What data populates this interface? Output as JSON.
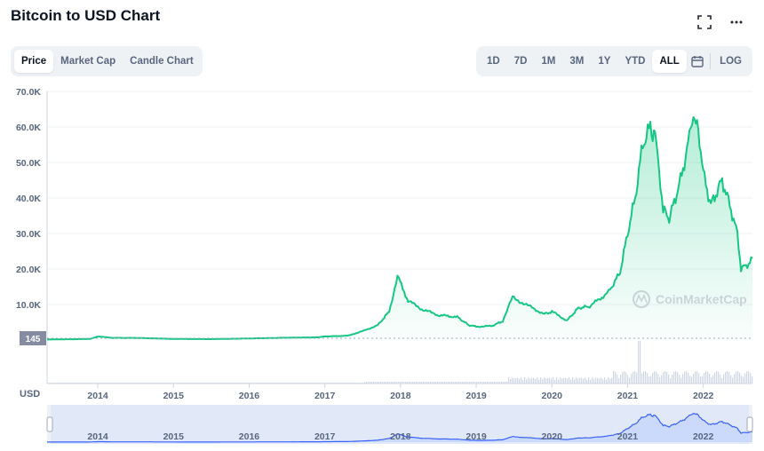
{
  "header": {
    "title": "Bitcoin to USD Chart"
  },
  "icons": {
    "fullscreen": "fullscreen-icon",
    "more": "more-icon",
    "calendar": "calendar-icon",
    "watermark": "coinmarketcap-logo"
  },
  "tabs": [
    {
      "label": "Price",
      "active": true
    },
    {
      "label": "Market Cap",
      "active": false
    },
    {
      "label": "Candle Chart",
      "active": false
    }
  ],
  "ranges": [
    {
      "label": "1D",
      "active": false
    },
    {
      "label": "7D",
      "active": false
    },
    {
      "label": "1M",
      "active": false
    },
    {
      "label": "3M",
      "active": false
    },
    {
      "label": "1Y",
      "active": false
    },
    {
      "label": "YTD",
      "active": false
    },
    {
      "label": "ALL",
      "active": true
    }
  ],
  "log_label": "LOG",
  "watermark_text": "CoinMarketCap",
  "colors": {
    "line": "#16c784",
    "volume": "#cfd6e4",
    "navigator_line": "#3861fb",
    "navigator_fill": "#dbe5fb",
    "start_badge": "#858ca2"
  },
  "chart_data": {
    "type": "area",
    "title": "Bitcoin to USD Chart",
    "y_unit_label": "USD",
    "start_price_label": "145",
    "ylim": [
      0,
      70000
    ],
    "y_ticks": [
      {
        "value": 10000,
        "label": "10.0K"
      },
      {
        "value": 20000,
        "label": "20.0K"
      },
      {
        "value": 30000,
        "label": "30.0K"
      },
      {
        "value": 40000,
        "label": "40.0K"
      },
      {
        "value": 50000,
        "label": "50.0K"
      },
      {
        "value": 60000,
        "label": "60.0K"
      },
      {
        "value": 70000,
        "label": "70.0K"
      }
    ],
    "x_ticks": [
      "2014",
      "2015",
      "2016",
      "2017",
      "2018",
      "2019",
      "2020",
      "2021",
      "2022"
    ],
    "grid": true,
    "series": [
      {
        "x": [
          2013.33,
          2013.9,
          2014.0,
          2014.2,
          2014.5,
          2014.9,
          2015.0,
          2015.5,
          2015.9,
          2016.5,
          2016.9,
          2017.0,
          2017.3,
          2017.5,
          2017.7,
          2017.85,
          2017.96,
          2018.1,
          2018.3,
          2018.5,
          2018.75,
          2018.9,
          2019.0,
          2019.2,
          2019.35,
          2019.48,
          2019.7,
          2019.9,
          2020.0,
          2020.2,
          2020.35,
          2020.5,
          2020.75,
          2020.9,
          2021.0,
          2021.1,
          2021.2,
          2021.3,
          2021.38,
          2021.47,
          2021.55,
          2021.7,
          2021.8,
          2021.87,
          2021.95,
          2022.0,
          2022.1,
          2022.25,
          2022.35,
          2022.45,
          2022.5,
          2022.6,
          2022.65
        ],
        "y": [
          145,
          300,
          1000,
          600,
          600,
          380,
          300,
          260,
          400,
          650,
          750,
          1000,
          1200,
          2500,
          4200,
          8000,
          18000,
          11000,
          8500,
          7000,
          6500,
          4200,
          3800,
          3900,
          5300,
          12000,
          9500,
          7300,
          8000,
          5500,
          9000,
          9500,
          13500,
          19000,
          30000,
          40000,
          55000,
          60000,
          56000,
          37000,
          34000,
          45000,
          55000,
          64000,
          57000,
          47000,
          38000,
          45000,
          38000,
          30000,
          20000,
          21500,
          23000
        ]
      }
    ]
  }
}
